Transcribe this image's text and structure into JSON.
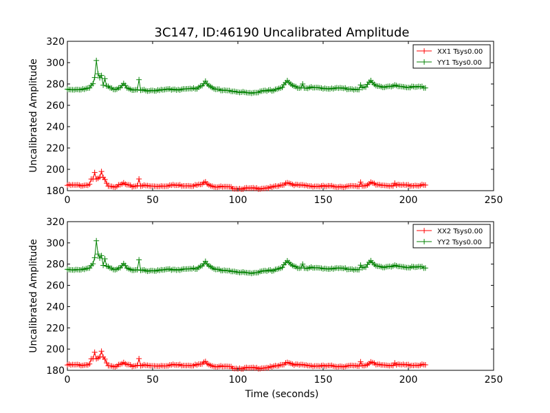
{
  "chart_data": {
    "type": "line",
    "title": "3C147, ID:46190 Uncalibrated Amplitude",
    "xlabel": "Time (seconds)",
    "colors": {
      "red": "#ff0000",
      "green": "#008000"
    },
    "panels": [
      {
        "ylabel": "Uncalibrated Amplitude",
        "xlim": [
          0,
          250
        ],
        "ylim": [
          180,
          320
        ],
        "xticks": [
          "0",
          "50",
          "100",
          "150",
          "200",
          "250"
        ],
        "yticks": [
          "180",
          "200",
          "220",
          "240",
          "260",
          "280",
          "300",
          "320"
        ],
        "legend_position": "top-right",
        "series": [
          {
            "name": "XX1 Tsys0.00",
            "color": "#ff0000",
            "points": [
              [
                0,
                185
              ],
              [
                5,
                185
              ],
              [
                10,
                185
              ],
              [
                13,
                186
              ],
              [
                14,
                191
              ],
              [
                16,
                190
              ],
              [
                18,
                191
              ],
              [
                20,
                194
              ],
              [
                22,
                190
              ],
              [
                24,
                185
              ],
              [
                28,
                184
              ],
              [
                31,
                185
              ],
              [
                33,
                187
              ],
              [
                35,
                185
              ],
              [
                38,
                184
              ],
              [
                42,
                185
              ],
              [
                50,
                184
              ],
              [
                60,
                185
              ],
              [
                70,
                185
              ],
              [
                76,
                185
              ],
              [
                79,
                186
              ],
              [
                81,
                188
              ],
              [
                83,
                186
              ],
              [
                86,
                184
              ],
              [
                95,
                183
              ],
              [
                100,
                182
              ],
              [
                110,
                182
              ],
              [
                120,
                183
              ],
              [
                126,
                185
              ],
              [
                129,
                188
              ],
              [
                132,
                186
              ],
              [
                135,
                185
              ],
              [
                150,
                184
              ],
              [
                160,
                184
              ],
              [
                170,
                184
              ],
              [
                175,
                185
              ],
              [
                178,
                188
              ],
              [
                181,
                185
              ],
              [
                190,
                185
              ],
              [
                200,
                185
              ],
              [
                210,
                185
              ]
            ],
            "spikes": [
              [
                16,
                197
              ],
              [
                20,
                198
              ],
              [
                42,
                191
              ],
              [
                172,
                188
              ],
              [
                192,
                187
              ]
            ]
          },
          {
            "name": "YY1 Tsys0.00",
            "color": "#008000",
            "points": [
              [
                0,
                275
              ],
              [
                5,
                275
              ],
              [
                10,
                275
              ],
              [
                13,
                276
              ],
              [
                15,
                280
              ],
              [
                17,
                293
              ],
              [
                19,
                286
              ],
              [
                21,
                279
              ],
              [
                24,
                277
              ],
              [
                28,
                274
              ],
              [
                31,
                277
              ],
              [
                33,
                281
              ],
              [
                35,
                277
              ],
              [
                38,
                274
              ],
              [
                45,
                274
              ],
              [
                55,
                274
              ],
              [
                60,
                275
              ],
              [
                70,
                275
              ],
              [
                76,
                276
              ],
              [
                79,
                279
              ],
              [
                81,
                283
              ],
              [
                83,
                278
              ],
              [
                86,
                275
              ],
              [
                95,
                274
              ],
              [
                100,
                272
              ],
              [
                110,
                272
              ],
              [
                120,
                274
              ],
              [
                126,
                277
              ],
              [
                129,
                283
              ],
              [
                132,
                278
              ],
              [
                135,
                277
              ],
              [
                150,
                276
              ],
              [
                160,
                276
              ],
              [
                170,
                275
              ],
              [
                175,
                277
              ],
              [
                178,
                283
              ],
              [
                181,
                279
              ],
              [
                186,
                277
              ],
              [
                195,
                278
              ],
              [
                200,
                277
              ],
              [
                210,
                277
              ]
            ],
            "spikes": [
              [
                17,
                302
              ],
              [
                20,
                288
              ],
              [
                22,
                285
              ],
              [
                42,
                284
              ],
              [
                138,
                280
              ],
              [
                172,
                279
              ],
              [
                192,
                279
              ]
            ]
          }
        ]
      },
      {
        "ylabel": "Uncalibrated Amplitude",
        "xlabel": "Time (seconds)",
        "xlim": [
          0,
          250
        ],
        "ylim": [
          180,
          320
        ],
        "xticks": [
          "0",
          "50",
          "100",
          "150",
          "200",
          "250"
        ],
        "yticks": [
          "180",
          "200",
          "220",
          "240",
          "260",
          "280",
          "300",
          "320"
        ],
        "legend_position": "top-right",
        "series": [
          {
            "name": "XX2 Tsys0.00",
            "color": "#ff0000",
            "points": [
              [
                0,
                185
              ],
              [
                5,
                185
              ],
              [
                10,
                185
              ],
              [
                13,
                186
              ],
              [
                14,
                191
              ],
              [
                16,
                190
              ],
              [
                18,
                191
              ],
              [
                20,
                194
              ],
              [
                22,
                190
              ],
              [
                24,
                185
              ],
              [
                28,
                184
              ],
              [
                31,
                185
              ],
              [
                33,
                187
              ],
              [
                35,
                185
              ],
              [
                38,
                184
              ],
              [
                42,
                185
              ],
              [
                50,
                184
              ],
              [
                60,
                185
              ],
              [
                70,
                185
              ],
              [
                76,
                185
              ],
              [
                79,
                186
              ],
              [
                81,
                188
              ],
              [
                83,
                186
              ],
              [
                86,
                184
              ],
              [
                95,
                183
              ],
              [
                100,
                182
              ],
              [
                110,
                182
              ],
              [
                120,
                183
              ],
              [
                126,
                185
              ],
              [
                129,
                188
              ],
              [
                132,
                186
              ],
              [
                135,
                185
              ],
              [
                150,
                184
              ],
              [
                160,
                184
              ],
              [
                170,
                184
              ],
              [
                175,
                185
              ],
              [
                178,
                188
              ],
              [
                181,
                185
              ],
              [
                190,
                185
              ],
              [
                200,
                185
              ],
              [
                210,
                185
              ]
            ],
            "spikes": [
              [
                16,
                197
              ],
              [
                20,
                198
              ],
              [
                42,
                191
              ],
              [
                172,
                188
              ],
              [
                192,
                187
              ]
            ]
          },
          {
            "name": "YY2 Tsys0.00",
            "color": "#008000",
            "points": [
              [
                0,
                275
              ],
              [
                5,
                275
              ],
              [
                10,
                275
              ],
              [
                13,
                276
              ],
              [
                15,
                280
              ],
              [
                17,
                293
              ],
              [
                19,
                286
              ],
              [
                21,
                279
              ],
              [
                24,
                277
              ],
              [
                28,
                274
              ],
              [
                31,
                277
              ],
              [
                33,
                281
              ],
              [
                35,
                277
              ],
              [
                38,
                274
              ],
              [
                45,
                274
              ],
              [
                55,
                274
              ],
              [
                60,
                275
              ],
              [
                70,
                275
              ],
              [
                76,
                276
              ],
              [
                79,
                279
              ],
              [
                81,
                283
              ],
              [
                83,
                278
              ],
              [
                86,
                275
              ],
              [
                95,
                274
              ],
              [
                100,
                272
              ],
              [
                110,
                272
              ],
              [
                120,
                274
              ],
              [
                126,
                277
              ],
              [
                129,
                283
              ],
              [
                132,
                278
              ],
              [
                135,
                277
              ],
              [
                150,
                276
              ],
              [
                160,
                276
              ],
              [
                170,
                275
              ],
              [
                175,
                277
              ],
              [
                178,
                283
              ],
              [
                181,
                279
              ],
              [
                186,
                277
              ],
              [
                195,
                278
              ],
              [
                200,
                277
              ],
              [
                210,
                277
              ]
            ],
            "spikes": [
              [
                17,
                302
              ],
              [
                20,
                288
              ],
              [
                22,
                285
              ],
              [
                42,
                284
              ],
              [
                138,
                280
              ],
              [
                172,
                279
              ],
              [
                192,
                279
              ]
            ]
          }
        ]
      }
    ]
  }
}
